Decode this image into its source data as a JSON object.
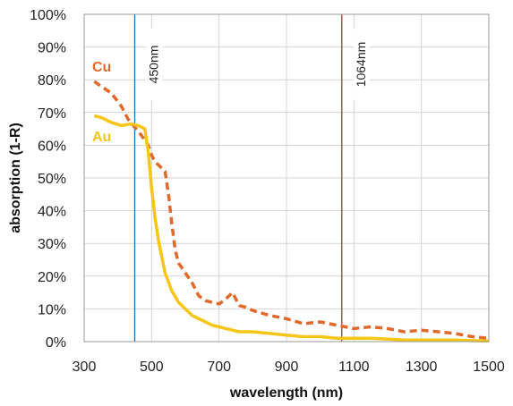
{
  "chart_data": {
    "type": "line",
    "xlabel": "wavelength (nm)",
    "ylabel": "absorption (1-R)",
    "xlim": [
      300,
      1500
    ],
    "ylim": [
      0,
      100
    ],
    "x_ticks": [
      300,
      500,
      700,
      900,
      1100,
      1300,
      1500
    ],
    "x_tick_labels": [
      "300",
      "500",
      "700",
      "900",
      "1100",
      "1300",
      "1500"
    ],
    "y_ticks": [
      0,
      10,
      20,
      30,
      40,
      50,
      60,
      70,
      80,
      90,
      100
    ],
    "y_tick_labels": [
      "0%",
      "10%",
      "20%",
      "30%",
      "40%",
      "50%",
      "60%",
      "70%",
      "80%",
      "90%",
      "100%"
    ],
    "grid": true,
    "series": [
      {
        "name": "Cu",
        "color": "#e06a2c",
        "style": "dashed",
        "x": [
          330,
          350,
          380,
          410,
          430,
          450,
          470,
          490,
          500,
          510,
          520,
          540,
          550,
          560,
          570,
          580,
          600,
          620,
          640,
          660,
          680,
          700,
          720,
          740,
          750,
          760,
          780,
          800,
          850,
          900,
          950,
          1000,
          1050,
          1100,
          1150,
          1200,
          1250,
          1300,
          1350,
          1400,
          1450,
          1500
        ],
        "y": [
          79.5,
          78,
          76,
          72,
          68,
          65.5,
          63,
          60,
          57,
          55,
          54,
          52,
          45,
          36,
          28,
          24,
          21,
          18,
          14,
          12.5,
          12,
          11.5,
          13,
          15,
          13,
          11,
          10.5,
          9.5,
          8,
          7,
          5.5,
          6,
          5,
          4,
          4.5,
          4,
          3,
          3.5,
          3,
          2.5,
          1.5,
          1
        ]
      },
      {
        "name": "Au",
        "color": "#f5c518",
        "style": "solid",
        "x": [
          330,
          350,
          380,
          410,
          440,
          460,
          480,
          490,
          500,
          510,
          520,
          540,
          560,
          580,
          600,
          620,
          640,
          660,
          680,
          700,
          720,
          740,
          760,
          780,
          800,
          850,
          900,
          950,
          1000,
          1050,
          1100,
          1150,
          1200,
          1250,
          1300,
          1350,
          1400,
          1450,
          1500
        ],
        "y": [
          69,
          68.5,
          67,
          66,
          66.5,
          66,
          65,
          58,
          47,
          38,
          31,
          21,
          15.5,
          12,
          10,
          8,
          7,
          6,
          5,
          4.5,
          4,
          3.5,
          3,
          3,
          3,
          2.5,
          2,
          1.5,
          1.5,
          1,
          1,
          1,
          0.8,
          0.5,
          0.5,
          0.5,
          0.5,
          0.3,
          0.2
        ]
      }
    ],
    "vertical_lines": [
      {
        "x": 450,
        "label": "450nm",
        "color": "#1f6fb5"
      },
      {
        "x": 1064,
        "label": "1064nm",
        "color": "#b03030"
      }
    ],
    "legend": "inline-left"
  }
}
